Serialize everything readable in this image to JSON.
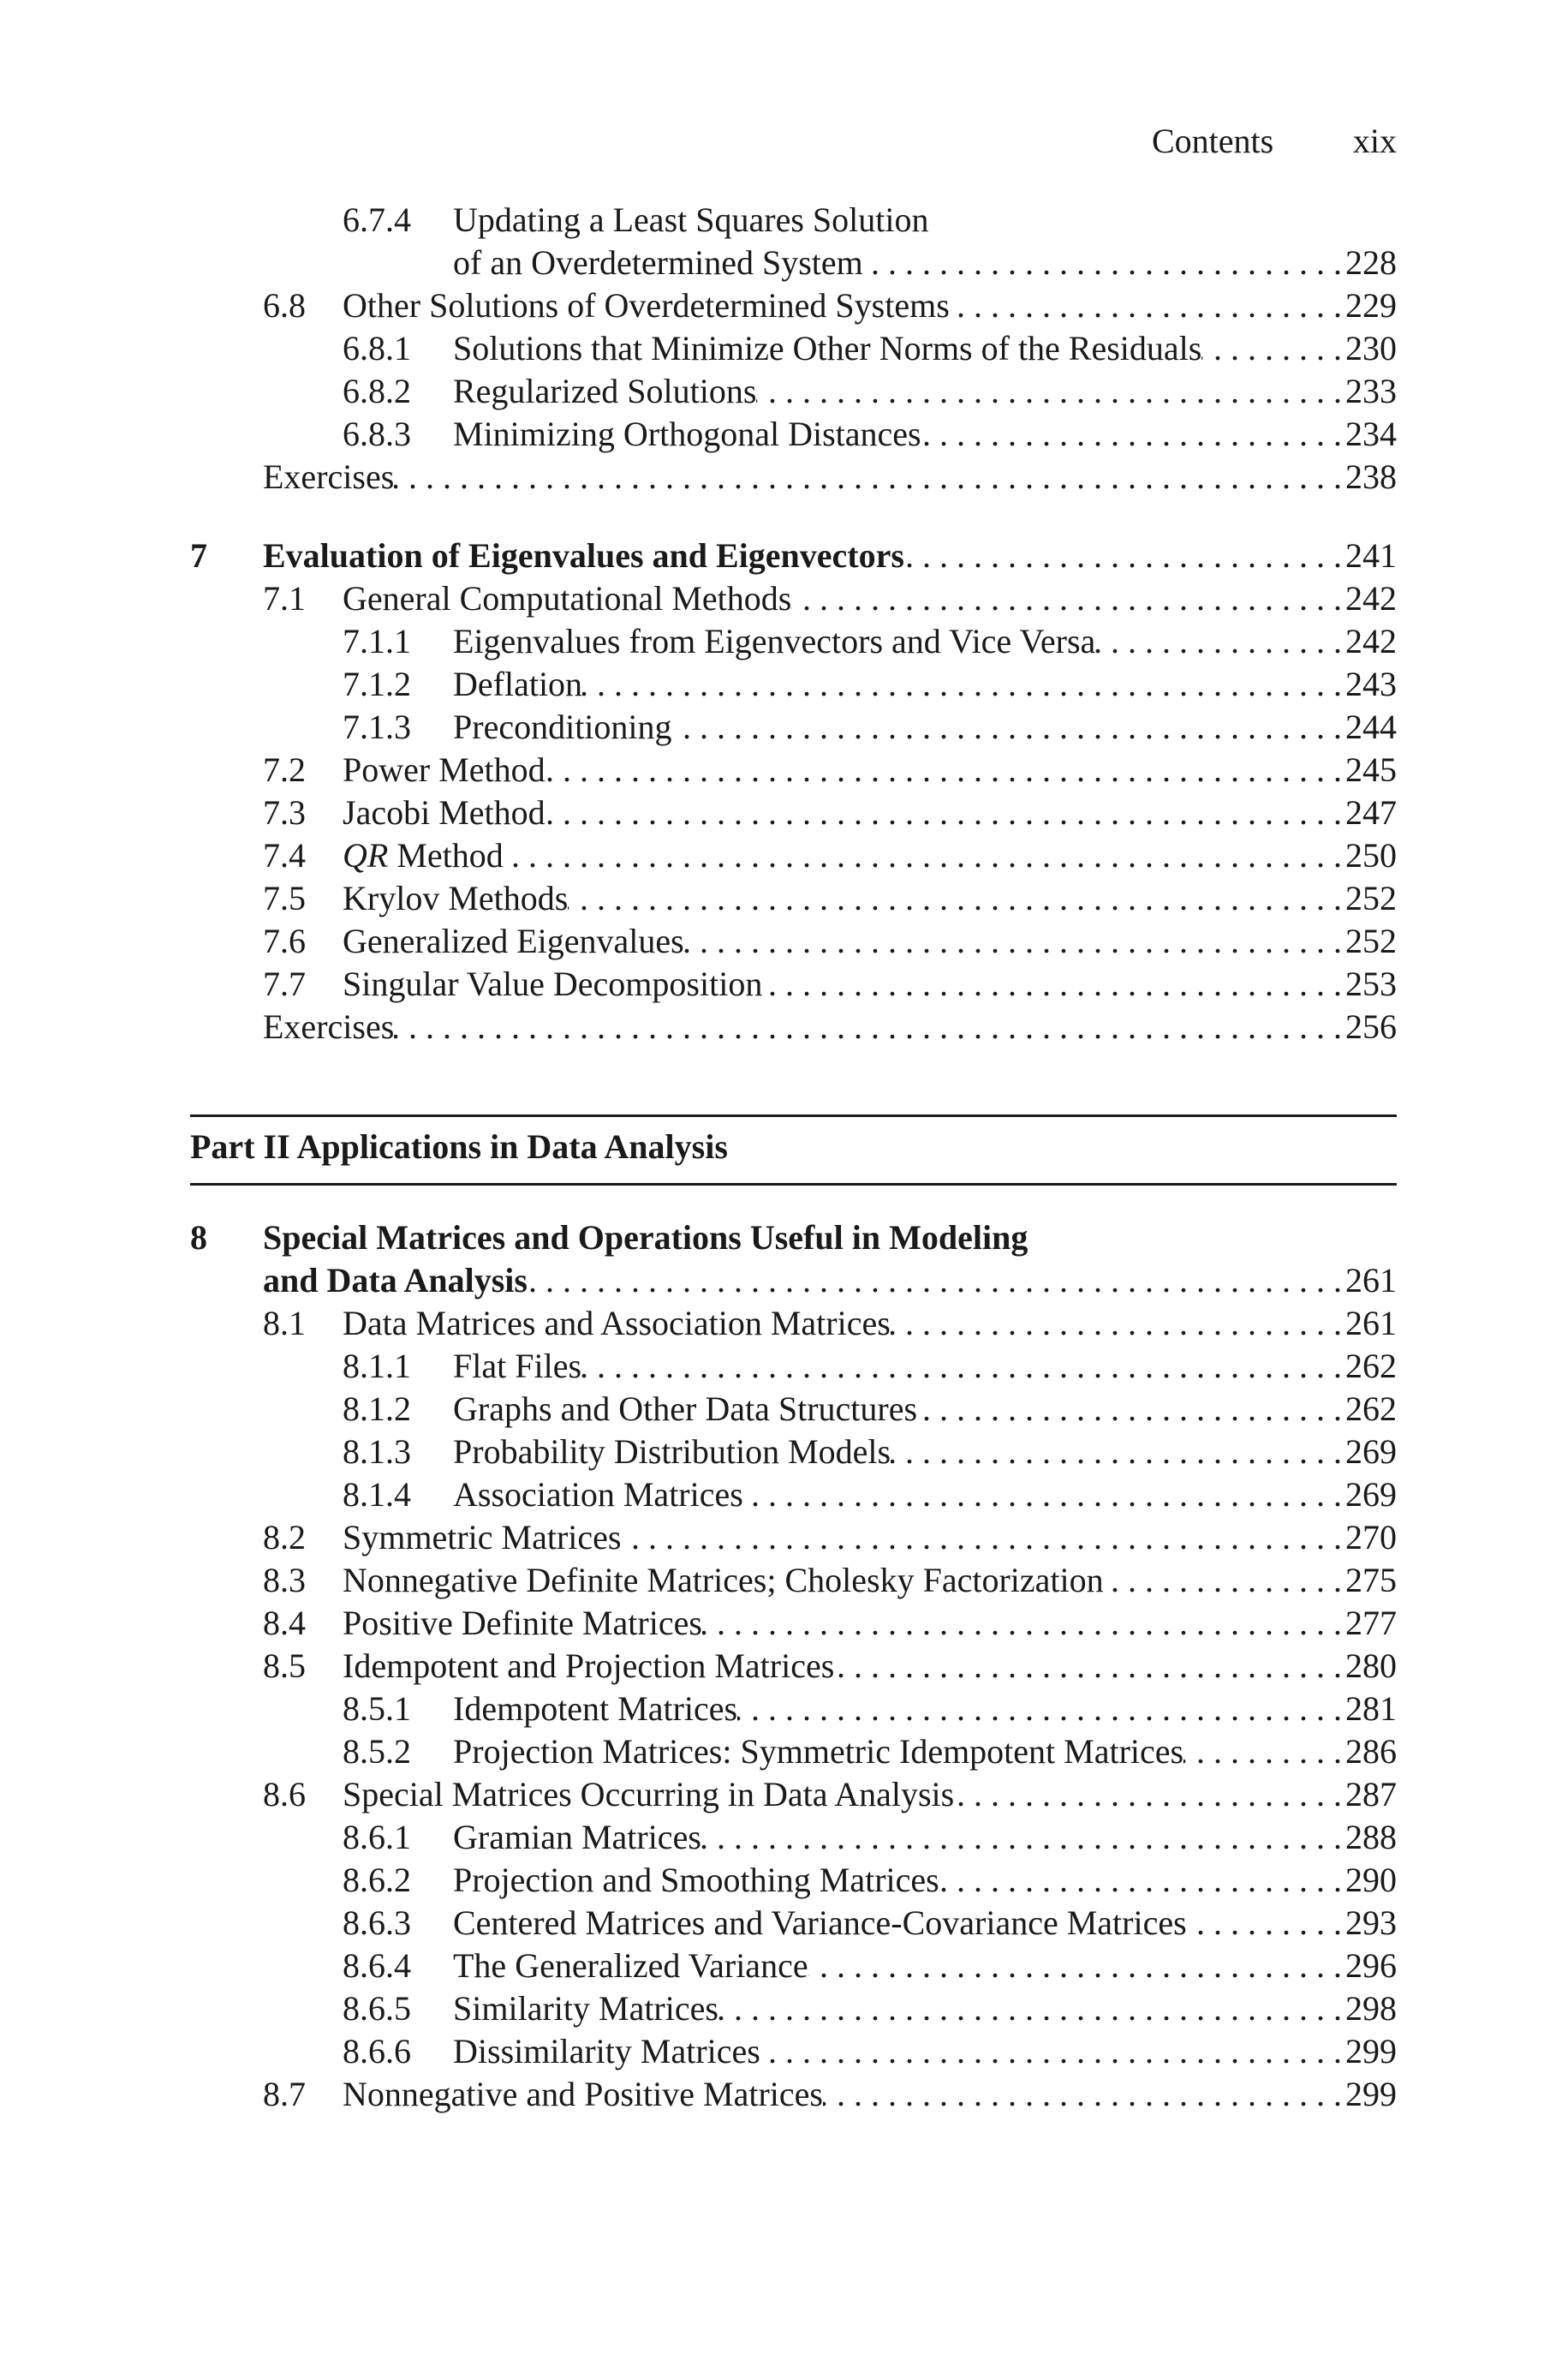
{
  "header": {
    "title": "Contents",
    "page": "xix"
  },
  "part": {
    "label": "Part II",
    "title": "Applications in Data Analysis"
  },
  "groups": [
    [
      {
        "level": "subsection",
        "num": "6.7.4",
        "title": "Updating a Least Squares Solution",
        "cont": "of an Overdetermined System",
        "page": "228"
      },
      {
        "level": "section",
        "num": "6.8",
        "title": "Other Solutions of Overdetermined Systems",
        "page": "229"
      },
      {
        "level": "subsection",
        "num": "6.8.1",
        "title": "Solutions that Minimize Other Norms of the Residuals",
        "page": "230"
      },
      {
        "level": "subsection",
        "num": "6.8.2",
        "title": "Regularized Solutions",
        "page": "233"
      },
      {
        "level": "subsection",
        "num": "6.8.3",
        "title": "Minimizing Orthogonal Distances",
        "page": "234"
      },
      {
        "level": "exercises",
        "num": "",
        "title": "Exercises",
        "page": "238"
      }
    ],
    [
      {
        "level": "chapter",
        "num": "7",
        "title": "Evaluation of Eigenvalues and Eigenvectors",
        "page": "241"
      },
      {
        "level": "section",
        "num": "7.1",
        "title": "General Computational Methods",
        "page": "242"
      },
      {
        "level": "subsection",
        "num": "7.1.1",
        "title": "Eigenvalues from Eigenvectors and Vice Versa",
        "page": "242"
      },
      {
        "level": "subsection",
        "num": "7.1.2",
        "title": "Deflation",
        "page": "243"
      },
      {
        "level": "subsection",
        "num": "7.1.3",
        "title": "Preconditioning",
        "page": "244"
      },
      {
        "level": "section",
        "num": "7.2",
        "title": "Power Method",
        "page": "245"
      },
      {
        "level": "section",
        "num": "7.3",
        "title": "Jacobi Method",
        "page": "247"
      },
      {
        "level": "section",
        "num": "7.4",
        "italic": "QR",
        "title": " Method",
        "page": "250"
      },
      {
        "level": "section",
        "num": "7.5",
        "title": "Krylov Methods",
        "page": "252"
      },
      {
        "level": "section",
        "num": "7.6",
        "title": "Generalized Eigenvalues",
        "page": "252"
      },
      {
        "level": "section",
        "num": "7.7",
        "title": "Singular Value Decomposition",
        "page": "253"
      },
      {
        "level": "exercises",
        "num": "",
        "title": "Exercises",
        "page": "256"
      }
    ],
    [
      {
        "level": "chapter",
        "num": "8",
        "title": "Special Matrices and Operations Useful in Modeling",
        "cont": "and Data Analysis",
        "page": "261"
      },
      {
        "level": "section",
        "num": "8.1",
        "title": "Data Matrices and Association Matrices",
        "page": "261"
      },
      {
        "level": "subsection",
        "num": "8.1.1",
        "title": "Flat Files",
        "page": "262"
      },
      {
        "level": "subsection",
        "num": "8.1.2",
        "title": "Graphs and Other Data Structures",
        "page": "262"
      },
      {
        "level": "subsection",
        "num": "8.1.3",
        "title": "Probability Distribution Models",
        "page": "269"
      },
      {
        "level": "subsection",
        "num": "8.1.4",
        "title": "Association Matrices",
        "page": "269"
      },
      {
        "level": "section",
        "num": "8.2",
        "title": "Symmetric Matrices",
        "page": "270"
      },
      {
        "level": "section",
        "num": "8.3",
        "title": "Nonnegative Definite Matrices; Cholesky Factorization",
        "page": "275"
      },
      {
        "level": "section",
        "num": "8.4",
        "title": "Positive Definite Matrices",
        "page": "277"
      },
      {
        "level": "section",
        "num": "8.5",
        "title": "Idempotent and Projection Matrices",
        "page": "280"
      },
      {
        "level": "subsection",
        "num": "8.5.1",
        "title": "Idempotent Matrices",
        "page": "281"
      },
      {
        "level": "subsection",
        "num": "8.5.2",
        "title": "Projection Matrices: Symmetric Idempotent Matrices",
        "page": "286"
      },
      {
        "level": "section",
        "num": "8.6",
        "title": "Special Matrices Occurring in Data Analysis",
        "page": "287"
      },
      {
        "level": "subsection",
        "num": "8.6.1",
        "title": "Gramian Matrices",
        "page": "288"
      },
      {
        "level": "subsection",
        "num": "8.6.2",
        "title": "Projection and Smoothing Matrices",
        "page": "290"
      },
      {
        "level": "subsection",
        "num": "8.6.3",
        "title": "Centered Matrices and Variance-Covariance Matrices",
        "page": "293"
      },
      {
        "level": "subsection",
        "num": "8.6.4",
        "title": "The Generalized Variance",
        "page": "296"
      },
      {
        "level": "subsection",
        "num": "8.6.5",
        "title": "Similarity Matrices",
        "page": "298"
      },
      {
        "level": "subsection",
        "num": "8.6.6",
        "title": "Dissimilarity Matrices",
        "page": "299"
      },
      {
        "level": "section",
        "num": "8.7",
        "title": "Nonnegative and Positive Matrices",
        "page": "299"
      }
    ]
  ]
}
